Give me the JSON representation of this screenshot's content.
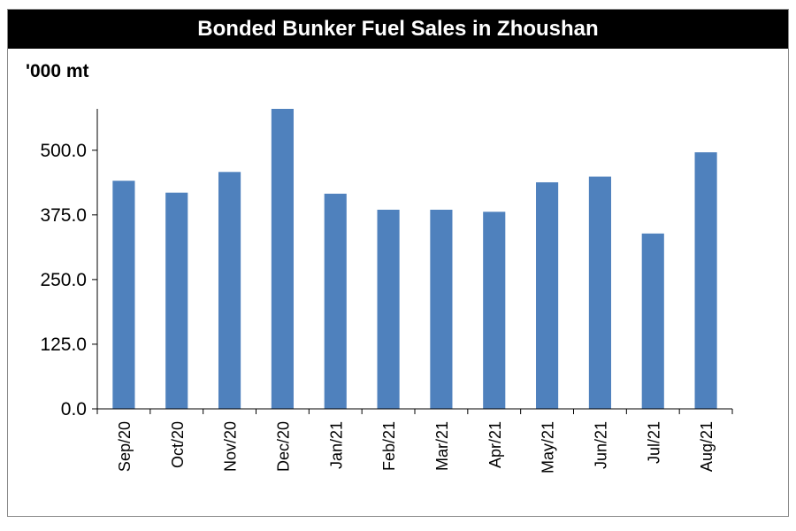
{
  "chart_data": {
    "type": "bar",
    "title": "Bonded Bunker Fuel Sales in Zhoushan",
    "unit_label": "'000 mt",
    "xlabel": "",
    "ylabel": "",
    "categories": [
      "Sep/20",
      "Oct/20",
      "Nov/20",
      "Dec/20",
      "Jan/21",
      "Feb/21",
      "Mar/21",
      "Apr/21",
      "May/21",
      "Jun/21",
      "Jul/21",
      "Aug/21"
    ],
    "series": [
      {
        "values": [
          441,
          418,
          458,
          580,
          416,
          385,
          385,
          381,
          438,
          449,
          339,
          496
        ]
      }
    ],
    "ylim": [
      0,
      580
    ],
    "yticks": [
      0,
      125,
      250,
      375,
      500
    ],
    "ytick_labels": [
      "0.0",
      "125.0",
      "250.0",
      "375.0",
      "500.0"
    ],
    "grid": false,
    "legend": "none",
    "bar_color": "#4f81bd"
  }
}
